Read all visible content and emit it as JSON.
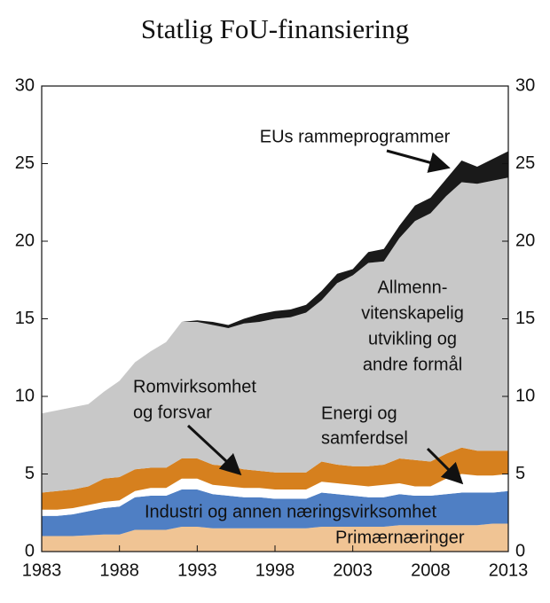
{
  "chart_data": {
    "type": "stacked_area",
    "title": "Statlig FoU-finansiering",
    "x": [
      1983,
      1984,
      1985,
      1986,
      1987,
      1988,
      1989,
      1990,
      1991,
      1992,
      1993,
      1994,
      1995,
      1996,
      1997,
      1998,
      1999,
      2000,
      2001,
      2002,
      2003,
      2004,
      2005,
      2006,
      2007,
      2008,
      2009,
      2010,
      2011,
      2012,
      2013
    ],
    "xlim": [
      1983,
      2013
    ],
    "xticks": [
      1983,
      1988,
      1993,
      1998,
      2003,
      2008,
      2013
    ],
    "ylim": [
      0,
      30
    ],
    "yticks": [
      0,
      5,
      10,
      15,
      20,
      25,
      30
    ],
    "series": [
      {
        "name": [
          "Primærnæringer"
        ],
        "color": "#f0c494",
        "values": [
          1.0,
          1.0,
          1.0,
          1.05,
          1.1,
          1.1,
          1.4,
          1.4,
          1.4,
          1.6,
          1.6,
          1.5,
          1.5,
          1.5,
          1.5,
          1.5,
          1.5,
          1.5,
          1.6,
          1.6,
          1.6,
          1.6,
          1.6,
          1.7,
          1.7,
          1.7,
          1.7,
          1.7,
          1.7,
          1.8,
          1.8
        ]
      },
      {
        "name": [
          "Industri og annen næringsvirksomhet"
        ],
        "color": "#4f7fc4",
        "values": [
          1.3,
          1.3,
          1.4,
          1.55,
          1.7,
          1.8,
          2.1,
          2.2,
          2.2,
          2.4,
          2.4,
          2.2,
          2.1,
          2.0,
          2.0,
          1.9,
          1.9,
          1.9,
          2.2,
          2.1,
          2.0,
          1.9,
          1.9,
          2.0,
          1.9,
          1.9,
          2.0,
          2.1,
          2.1,
          2.0,
          2.1
        ]
      },
      {
        "name": [
          "Energi og",
          "samferdsel"
        ],
        "color": "#ffffff",
        "values": [
          0.4,
          0.4,
          0.4,
          0.4,
          0.4,
          0.4,
          0.4,
          0.5,
          0.5,
          0.7,
          0.7,
          0.6,
          0.6,
          0.6,
          0.6,
          0.6,
          0.6,
          0.6,
          0.7,
          0.7,
          0.7,
          0.7,
          0.8,
          0.7,
          0.6,
          0.6,
          1.0,
          1.2,
          1.1,
          1.1,
          1.1
        ]
      },
      {
        "name": [
          "Romvirksomhet",
          "og forsvar"
        ],
        "color": "#d6801e",
        "values": [
          1.1,
          1.2,
          1.2,
          1.2,
          1.5,
          1.5,
          1.4,
          1.3,
          1.3,
          1.3,
          1.3,
          1.3,
          1.3,
          1.2,
          1.1,
          1.1,
          1.1,
          1.1,
          1.3,
          1.2,
          1.2,
          1.3,
          1.3,
          1.6,
          1.7,
          1.6,
          1.6,
          1.7,
          1.6,
          1.6,
          1.5
        ]
      },
      {
        "name": [
          "Allmenn-",
          "vitenskapelig",
          "utvikling og",
          "andre formål"
        ],
        "color": "#c8c8c8",
        "values": [
          5.1,
          5.2,
          5.3,
          5.3,
          5.6,
          6.2,
          6.9,
          7.5,
          8.1,
          8.8,
          8.8,
          9.0,
          8.9,
          9.4,
          9.6,
          9.9,
          10.0,
          10.3,
          10.4,
          11.7,
          12.3,
          13.1,
          13.1,
          14.2,
          15.4,
          16.0,
          16.6,
          17.1,
          17.2,
          17.4,
          17.6
        ]
      },
      {
        "name": [
          "EUs rammeprogrammer"
        ],
        "color": "#1a1a1a",
        "values": [
          0,
          0,
          0,
          0,
          0,
          0,
          0,
          0,
          0,
          0,
          0.1,
          0.2,
          0.2,
          0.3,
          0.5,
          0.5,
          0.5,
          0.5,
          0.6,
          0.6,
          0.4,
          0.7,
          0.8,
          0.8,
          1.0,
          1.0,
          1.1,
          1.4,
          1.1,
          1.4,
          1.7
        ]
      }
    ]
  }
}
